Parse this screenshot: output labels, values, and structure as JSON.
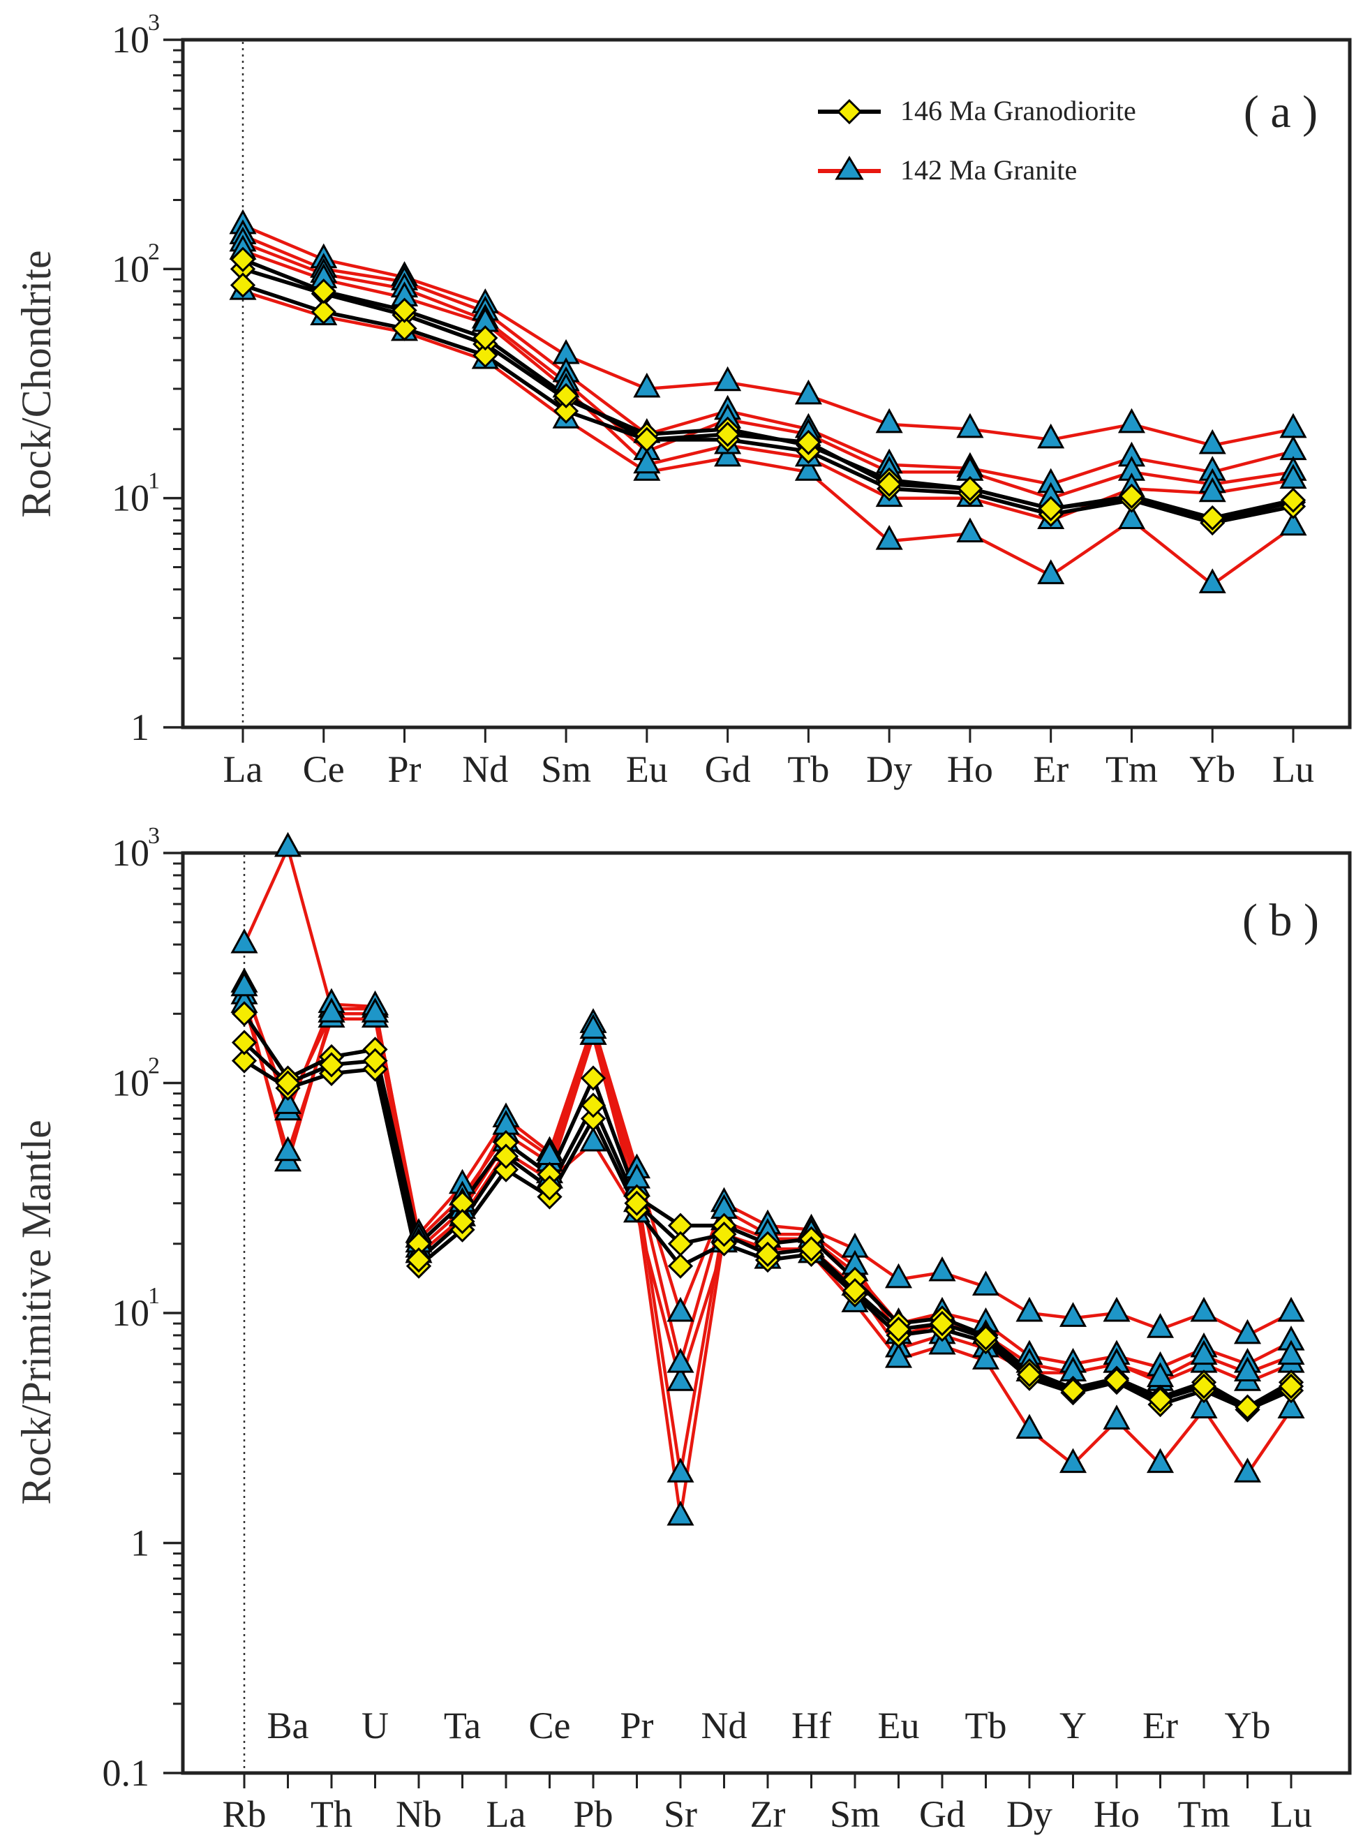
{
  "colors": {
    "granodiorite_line": "#000000",
    "granodiorite_marker": "#f5ec00",
    "granite_line": "#e8170f",
    "granite_marker": "#1e96c8",
    "axis": "#222222"
  },
  "chart_data": [
    {
      "type": "line",
      "panel_label": "( a )",
      "ylabel": "Rock/Chondrite",
      "yscale": "log",
      "ylim": [
        1,
        1000
      ],
      "yticks": [
        {
          "value": 1,
          "label": "1",
          "exp": ""
        },
        {
          "value": 10,
          "label": "10",
          "exp": "1"
        },
        {
          "value": 100,
          "label": "10",
          "exp": "2"
        },
        {
          "value": 1000,
          "label": "10",
          "exp": "3"
        }
      ],
      "categories": [
        "La",
        "Ce",
        "Pr",
        "Nd",
        "Sm",
        "Eu",
        "Gd",
        "Tb",
        "Dy",
        "Ho",
        "Er",
        "Tm",
        "Yb",
        "Lu"
      ],
      "legend": [
        {
          "name": "146 Ma Granodiorite",
          "series": "granodiorite"
        },
        {
          "name": "142 Ma Granite",
          "series": "granite"
        }
      ],
      "series": [
        {
          "group": "granodiorite",
          "name": "146 Ma Granodiorite",
          "values": [
            100,
            78,
            63,
            47,
            27,
            19,
            20,
            17,
            12,
            11,
            9,
            10,
            8,
            9.6
          ]
        },
        {
          "group": "granodiorite",
          "name": "146 Ma Granodiorite",
          "values": [
            85,
            65,
            55,
            42,
            24,
            18,
            18,
            16,
            11,
            10.5,
            8.5,
            9.8,
            7.8,
            9.2
          ]
        },
        {
          "group": "granodiorite",
          "name": "146 Ma Granodiorite",
          "values": [
            110,
            80,
            66,
            50,
            28,
            18,
            19,
            17.5,
            11.5,
            11,
            9,
            10.2,
            8.2,
            9.8
          ]
        },
        {
          "group": "granite",
          "name": "142 Ma Granite",
          "values": [
            155,
            110,
            92,
            70,
            42,
            30,
            32,
            28,
            21,
            20,
            18,
            21,
            17,
            20
          ]
        },
        {
          "group": "granite",
          "name": "142 Ma Granite",
          "values": [
            140,
            100,
            88,
            65,
            35,
            19,
            24,
            20,
            14,
            13.5,
            11.5,
            15,
            13,
            16
          ]
        },
        {
          "group": "granite",
          "name": "142 Ma Granite",
          "values": [
            130,
            95,
            82,
            60,
            32,
            16,
            22,
            19,
            13,
            13,
            10,
            13,
            11.5,
            13
          ]
        },
        {
          "group": "granite",
          "name": "142 Ma Granite",
          "values": [
            80,
            62,
            53,
            40,
            22,
            13,
            15,
            13,
            6.5,
            7,
            4.6,
            8,
            4.2,
            7.5
          ]
        },
        {
          "group": "granite",
          "name": "142 Ma Granite",
          "values": [
            120,
            90,
            75,
            58,
            30,
            14,
            17,
            15,
            10,
            10,
            8,
            11,
            10.5,
            12
          ]
        }
      ]
    },
    {
      "type": "line",
      "panel_label": "( b )",
      "ylabel": "Rock/Primitive Mantle",
      "yscale": "log",
      "ylim": [
        0.1,
        1000
      ],
      "yticks": [
        {
          "value": 0.1,
          "label": "0.1",
          "exp": ""
        },
        {
          "value": 1,
          "label": "1",
          "exp": ""
        },
        {
          "value": 10,
          "label": "10",
          "exp": "1"
        },
        {
          "value": 100,
          "label": "10",
          "exp": "2"
        },
        {
          "value": 1000,
          "label": "10",
          "exp": "3"
        }
      ],
      "categories": [
        "Rb",
        "Ba",
        "Th",
        "U",
        "Nb",
        "Ta",
        "La",
        "Ce",
        "Pb",
        "Pr",
        "Sr",
        "Nd",
        "Zr",
        "Hf",
        "Sm",
        "Eu",
        "Gd",
        "Tb",
        "Dy",
        "Y",
        "Ho",
        "Er",
        "Tm",
        "Yb",
        "Lu"
      ],
      "bottom_labels": [
        "Rb",
        "Th",
        "Nb",
        "La",
        "Pb",
        "Sr",
        "Zr",
        "Sm",
        "Gd",
        "Dy",
        "Ho",
        "Tm",
        "Lu"
      ],
      "top_labels": [
        "Ba",
        "U",
        "Ta",
        "Ce",
        "Pr",
        "Nd",
        "Hf",
        "Eu",
        "Tb",
        "Y",
        "Er",
        "Yb"
      ],
      "series": [
        {
          "group": "granodiorite",
          "name": "146 Ma Granodiorite",
          "values": [
            200,
            105,
            130,
            140,
            20,
            30,
            55,
            40,
            105,
            32,
            24,
            24,
            20,
            21,
            14,
            9,
            9.5,
            8,
            5.6,
            4.7,
            5.2,
            4.3,
            5,
            3.9,
            5
          ]
        },
        {
          "group": "granodiorite",
          "name": "146 Ma Granodiorite",
          "values": [
            125,
            95,
            110,
            115,
            16,
            23,
            42,
            32,
            70,
            28,
            16,
            20,
            17,
            18,
            12,
            8,
            8.5,
            7.5,
            5.2,
            4.5,
            5,
            4,
            4.6,
            3.8,
            4.6
          ]
        },
        {
          "group": "granodiorite",
          "name": "146 Ma Granodiorite",
          "values": [
            150,
            100,
            120,
            125,
            17,
            25,
            48,
            35,
            80,
            30,
            20,
            22,
            18,
            19,
            12.5,
            8.5,
            9,
            7.8,
            5.4,
            4.6,
            5.1,
            4.2,
            4.8,
            3.9,
            4.8
          ]
        },
        {
          "group": "granite",
          "name": "142 Ma Granite",
          "values": [
            400,
            1050,
            210,
            210,
            22,
            36,
            70,
            50,
            180,
            42,
            10,
            30,
            24,
            23,
            19,
            14,
            15,
            13,
            10,
            9.5,
            10,
            8.5,
            10,
            8,
            10
          ]
        },
        {
          "group": "granite",
          "name": "142 Ma Granite",
          "values": [
            270,
            75,
            220,
            215,
            21,
            32,
            60,
            45,
            160,
            35,
            2,
            25,
            21,
            21,
            15,
            9,
            10,
            9,
            6.5,
            6,
            6.5,
            5.8,
            7,
            6,
            7.5
          ]
        },
        {
          "group": "granite",
          "name": "142 Ma Granite",
          "values": [
            240,
            45,
            200,
            200,
            19,
            28,
            55,
            40,
            160,
            30,
            1.3,
            22,
            19,
            19,
            13,
            7,
            8,
            7,
            5.5,
            5.5,
            6,
            5,
            6,
            5,
            6
          ]
        },
        {
          "group": "granite",
          "name": "142 Ma Granite",
          "values": [
            220,
            50,
            190,
            190,
            18,
            26,
            50,
            38,
            55,
            27,
            5,
            20,
            17,
            18,
            11,
            6.3,
            7.2,
            6.2,
            3.1,
            2.2,
            3.4,
            2.2,
            3.8,
            2,
            3.8
          ]
        },
        {
          "group": "granite",
          "name": "142 Ma Granite",
          "values": [
            260,
            80,
            200,
            200,
            20,
            30,
            65,
            48,
            170,
            38,
            6,
            28,
            22,
            22,
            16,
            8,
            9,
            8,
            6,
            5.5,
            6,
            5.2,
            6.5,
            5.5,
            6.5
          ]
        }
      ]
    }
  ]
}
